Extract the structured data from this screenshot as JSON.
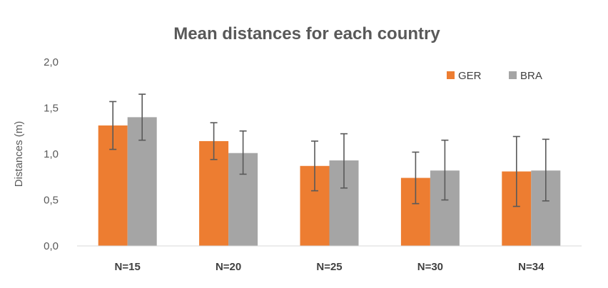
{
  "chart_data": {
    "type": "bar",
    "title": "Mean distances for each country",
    "xlabel": "",
    "ylabel": "Distances (m)",
    "ylim": [
      0,
      2
    ],
    "yticks": [
      "0,0",
      "0,5",
      "1,0",
      "1,5",
      "2,0"
    ],
    "ytick_values": [
      0,
      0.5,
      1.0,
      1.5,
      2.0
    ],
    "categories": [
      "N=15",
      "N=20",
      "N=25",
      "N=30",
      "N=34"
    ],
    "grid": false,
    "legend_position": "top-right",
    "series": [
      {
        "name": "GER",
        "color": "#ED7D31",
        "values": [
          1.31,
          1.14,
          0.87,
          0.74,
          0.81
        ],
        "error_low": [
          1.05,
          0.94,
          0.6,
          0.46,
          0.43
        ],
        "error_high": [
          1.57,
          1.34,
          1.14,
          1.02,
          1.19
        ]
      },
      {
        "name": "BRA",
        "color": "#A5A5A5",
        "values": [
          1.4,
          1.01,
          0.93,
          0.82,
          0.82
        ],
        "error_low": [
          1.15,
          0.78,
          0.63,
          0.5,
          0.49
        ],
        "error_high": [
          1.65,
          1.25,
          1.22,
          1.15,
          1.16
        ]
      }
    ]
  }
}
